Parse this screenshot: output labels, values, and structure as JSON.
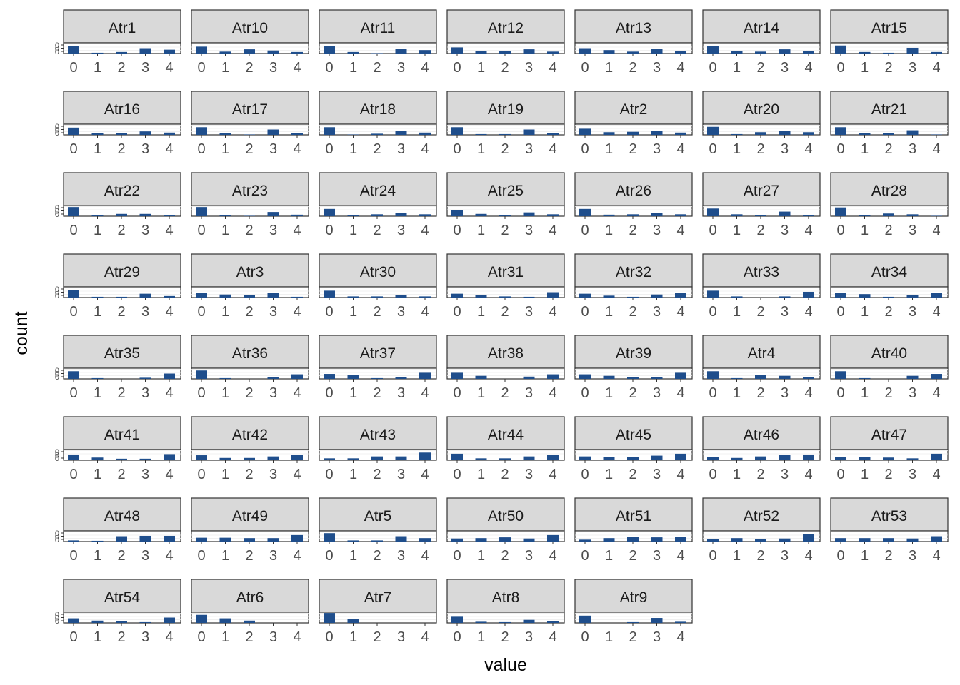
{
  "chart_data": {
    "type": "bar",
    "layout": "facet-wrap",
    "xlabel": "value",
    "ylabel": "count",
    "categories": [
      "0",
      "1",
      "2",
      "3",
      "4"
    ],
    "y_tick_labels": [
      "0",
      "0",
      "0"
    ],
    "bar_color": "#1f4e8c",
    "strip_color": "#d9d9d9",
    "grid": true,
    "facets": [
      {
        "name": "Atr1",
        "values": [
          100,
          10,
          20,
          70,
          50
        ]
      },
      {
        "name": "Atr10",
        "values": [
          90,
          25,
          55,
          40,
          20
        ]
      },
      {
        "name": "Atr11",
        "values": [
          100,
          20,
          5,
          60,
          45
        ]
      },
      {
        "name": "Atr12",
        "values": [
          80,
          35,
          35,
          55,
          25
        ]
      },
      {
        "name": "Atr13",
        "values": [
          70,
          45,
          25,
          65,
          35
        ]
      },
      {
        "name": "Atr14",
        "values": [
          95,
          35,
          25,
          55,
          35
        ]
      },
      {
        "name": "Atr15",
        "values": [
          105,
          20,
          10,
          75,
          20
        ]
      },
      {
        "name": "Atr16",
        "values": [
          95,
          20,
          25,
          45,
          30
        ]
      },
      {
        "name": "Atr17",
        "values": [
          100,
          20,
          5,
          70,
          25
        ]
      },
      {
        "name": "Atr18",
        "values": [
          100,
          5,
          15,
          55,
          30
        ]
      },
      {
        "name": "Atr19",
        "values": [
          100,
          10,
          10,
          70,
          25
        ]
      },
      {
        "name": "Atr2",
        "values": [
          80,
          35,
          40,
          55,
          30
        ]
      },
      {
        "name": "Atr20",
        "values": [
          105,
          10,
          35,
          50,
          35
        ]
      },
      {
        "name": "Atr21",
        "values": [
          100,
          25,
          20,
          60,
          5
        ]
      },
      {
        "name": "Atr22",
        "values": [
          120,
          15,
          30,
          30,
          15
        ]
      },
      {
        "name": "Atr23",
        "values": [
          120,
          10,
          5,
          55,
          20
        ]
      },
      {
        "name": "Atr24",
        "values": [
          95,
          15,
          25,
          40,
          25
        ]
      },
      {
        "name": "Atr25",
        "values": [
          75,
          30,
          10,
          50,
          25
        ]
      },
      {
        "name": "Atr26",
        "values": [
          95,
          20,
          25,
          40,
          25
        ]
      },
      {
        "name": "Atr27",
        "values": [
          100,
          25,
          15,
          60,
          10
        ]
      },
      {
        "name": "Atr28",
        "values": [
          115,
          10,
          35,
          25,
          5
        ]
      },
      {
        "name": "Atr29",
        "values": [
          100,
          10,
          10,
          50,
          20
        ]
      },
      {
        "name": "Atr3",
        "values": [
          65,
          40,
          30,
          60,
          10
        ]
      },
      {
        "name": "Atr30",
        "values": [
          90,
          15,
          15,
          35,
          15
        ]
      },
      {
        "name": "Atr31",
        "values": [
          50,
          30,
          15,
          10,
          70
        ]
      },
      {
        "name": "Atr32",
        "values": [
          50,
          25,
          10,
          40,
          60
        ]
      },
      {
        "name": "Atr33",
        "values": [
          90,
          15,
          0,
          15,
          75
        ]
      },
      {
        "name": "Atr34",
        "values": [
          65,
          45,
          10,
          30,
          60
        ]
      },
      {
        "name": "Atr35",
        "values": [
          100,
          10,
          0,
          15,
          70
        ]
      },
      {
        "name": "Atr36",
        "values": [
          110,
          10,
          0,
          25,
          60
        ]
      },
      {
        "name": "Atr37",
        "values": [
          65,
          50,
          10,
          20,
          80
        ]
      },
      {
        "name": "Atr38",
        "values": [
          80,
          40,
          0,
          30,
          60
        ]
      },
      {
        "name": "Atr39",
        "values": [
          60,
          40,
          20,
          20,
          80
        ]
      },
      {
        "name": "Atr4",
        "values": [
          100,
          10,
          50,
          40,
          20
        ]
      },
      {
        "name": "Atr40",
        "values": [
          100,
          10,
          0,
          40,
          65
        ]
      },
      {
        "name": "Atr41",
        "values": [
          75,
          35,
          20,
          20,
          80
        ]
      },
      {
        "name": "Atr42",
        "values": [
          65,
          30,
          30,
          50,
          70
        ]
      },
      {
        "name": "Atr43",
        "values": [
          25,
          25,
          50,
          50,
          100
        ]
      },
      {
        "name": "Atr44",
        "values": [
          85,
          25,
          25,
          50,
          70
        ]
      },
      {
        "name": "Atr45",
        "values": [
          50,
          45,
          40,
          60,
          85
        ]
      },
      {
        "name": "Atr46",
        "values": [
          40,
          30,
          50,
          70,
          75
        ]
      },
      {
        "name": "Atr47",
        "values": [
          45,
          45,
          35,
          25,
          85
        ]
      },
      {
        "name": "Atr48",
        "values": [
          15,
          10,
          70,
          75,
          75
        ]
      },
      {
        "name": "Atr49",
        "values": [
          50,
          50,
          45,
          45,
          85
        ]
      },
      {
        "name": "Atr5",
        "values": [
          110,
          15,
          15,
          70,
          45
        ]
      },
      {
        "name": "Atr50",
        "values": [
          40,
          45,
          55,
          40,
          85
        ]
      },
      {
        "name": "Atr51",
        "values": [
          25,
          45,
          65,
          55,
          60
        ]
      },
      {
        "name": "Atr52",
        "values": [
          35,
          45,
          35,
          40,
          95
        ]
      },
      {
        "name": "Atr53",
        "values": [
          45,
          45,
          45,
          40,
          70
        ]
      },
      {
        "name": "Atr54",
        "values": [
          60,
          30,
          20,
          10,
          70
        ]
      },
      {
        "name": "Atr6",
        "values": [
          105,
          60,
          30,
          0,
          0
        ]
      },
      {
        "name": "Atr7",
        "values": [
          130,
          50,
          0,
          0,
          0
        ]
      },
      {
        "name": "Atr8",
        "values": [
          90,
          15,
          10,
          40,
          25
        ]
      },
      {
        "name": "Atr9",
        "values": [
          95,
          0,
          10,
          65,
          15
        ]
      }
    ]
  }
}
